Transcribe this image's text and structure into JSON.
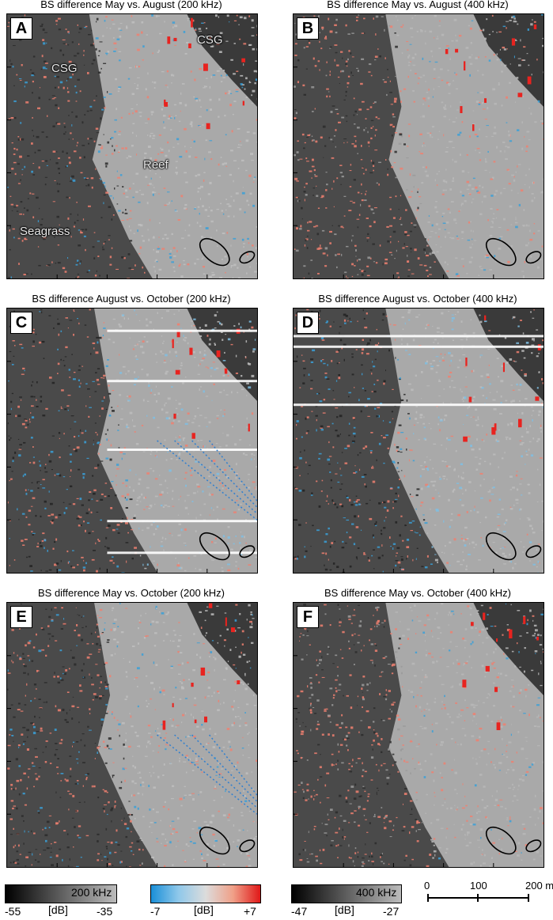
{
  "panels": [
    {
      "id": "A",
      "title": "BS difference May vs. August (200 kHz)",
      "letter": "A",
      "tags": [
        "CSG",
        "CSG",
        "Reef",
        "Seagrass"
      ]
    },
    {
      "id": "B",
      "title": "BS difference May vs. August (400 kHz)",
      "letter": "B",
      "tags": []
    },
    {
      "id": "C",
      "title": "BS difference August vs. October (200 kHz)",
      "letter": "C",
      "tags": []
    },
    {
      "id": "D",
      "title": "BS difference August vs. October (400 kHz)",
      "letter": "D",
      "tags": []
    },
    {
      "id": "E",
      "title": "BS difference May vs. October (200 kHz)",
      "letter": "E",
      "tags": []
    },
    {
      "id": "F",
      "title": "BS difference May vs. October (400 kHz)",
      "letter": "F",
      "tags": []
    }
  ],
  "legend": {
    "bar200": {
      "label": "200 kHz",
      "min": "-55",
      "unit": "[dB]",
      "max": "-35"
    },
    "diff": {
      "min": "-7",
      "unit": "[dB]",
      "max": "+7"
    },
    "bar400": {
      "label": "400 kHz",
      "min": "-47",
      "unit": "[dB]",
      "max": "-27"
    },
    "scale": {
      "t0": "0",
      "t1": "100",
      "t2": "200 m"
    }
  },
  "colors": {
    "blue": "#3aa0d8",
    "red": "#e8231f",
    "salmon": "#f08070",
    "dark": "#1a1a1a",
    "gray": "#9a9a9a"
  }
}
